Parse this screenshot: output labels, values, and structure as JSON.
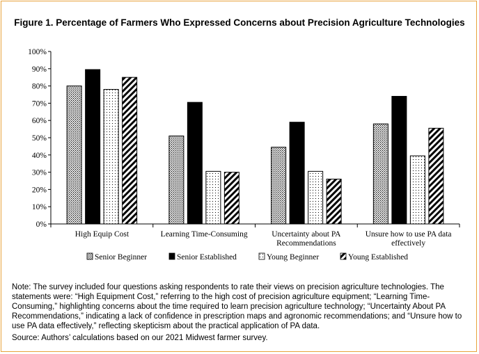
{
  "chart_data": {
    "type": "bar",
    "title": "Figure 1. Percentage of Farmers Who Expressed Concerns about Precision Agriculture Technologies",
    "categories": [
      [
        "High Equip Cost"
      ],
      [
        "Learning Time-Consuming"
      ],
      [
        "Uncertainty about PA",
        "Recommendations"
      ],
      [
        "Unsure how to use PA data",
        "effectively"
      ]
    ],
    "series": [
      {
        "name": "Senior Beginner",
        "pattern": "dotted-dense",
        "values": [
          80,
          51,
          44.5,
          58
        ]
      },
      {
        "name": "Senior Established",
        "pattern": "solid-black",
        "values": [
          89.5,
          70.5,
          59,
          74
        ]
      },
      {
        "name": "Young Beginner",
        "pattern": "dotted-sparse",
        "values": [
          78,
          30.5,
          30.5,
          39.5
        ]
      },
      {
        "name": "Young Established",
        "pattern": "diagonal-stripes",
        "values": [
          85,
          30,
          26,
          55.5
        ]
      }
    ],
    "ylim": [
      0,
      100
    ],
    "yticks": [
      "0%",
      "10%",
      "20%",
      "30%",
      "40%",
      "50%",
      "60%",
      "70%",
      "80%",
      "90%",
      "100%"
    ],
    "xlabel": "",
    "ylabel": "",
    "grid": false,
    "legend_position": "bottom"
  },
  "note": "Note: The survey included four questions asking respondents to rate their views on precision agriculture technologies. The statements were: “High Equipment Cost,” referring to the high cost of precision agriculture equipment; “Learning Time-Consuming,” highlighting concerns about the time required to learn precision agriculture technology; “Uncertainty About PA Recommendations,” indicating a lack of confidence in prescription maps and agronomic recommendations; and “Unsure how to use PA data effectively,” reflecting skepticism about the practical application of PA data.",
  "source": "Source: Authors’ calculations based on our 2021 Midwest farmer survey.",
  "colors": {
    "frame": "#e8a33c",
    "bar": "#000000",
    "background": "#ffffff"
  }
}
